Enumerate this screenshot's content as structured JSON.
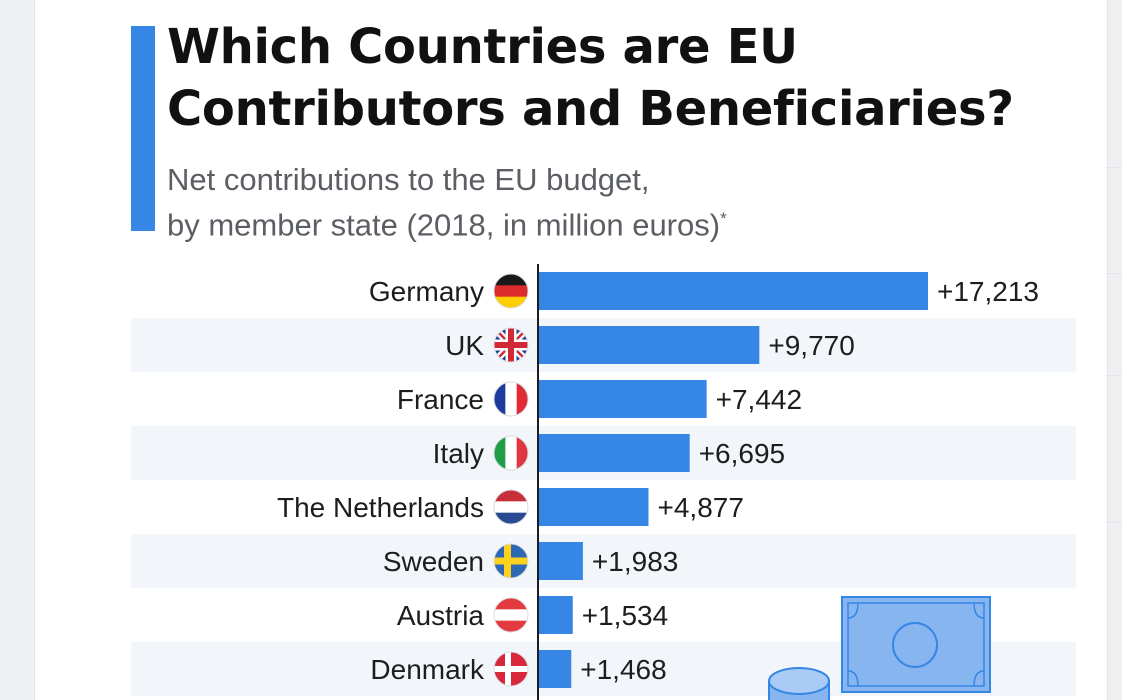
{
  "header": {
    "title_line1": "Which Countries are EU",
    "title_line2": "Contributors and Beneficiaries?",
    "subtitle_line1": "Net contributions to the EU budget,",
    "subtitle_line2": "by member state (2018, in million euros)",
    "subtitle_footnote_mark": "*"
  },
  "colors": {
    "accent": "#3686e6",
    "bar": "#3686e6",
    "row_stripe": "#f2f6fb",
    "text": "#111111",
    "subtitle": "#5b5f64"
  },
  "chart_data": {
    "type": "bar",
    "orientation": "horizontal",
    "categories": [
      "Germany",
      "UK",
      "France",
      "Italy",
      "The Netherlands",
      "Sweden",
      "Austria",
      "Denmark"
    ],
    "values": [
      17213,
      9770,
      7442,
      6695,
      4877,
      1983,
      1534,
      1468
    ],
    "data_labels": [
      "+17,213",
      "+9,770",
      "+7,442",
      "+6,695",
      "+4,877",
      "+1,983",
      "+1,534",
      "+1,468"
    ],
    "flags": [
      "flag-germany-icon",
      "flag-uk-icon",
      "flag-france-icon",
      "flag-italy-icon",
      "flag-netherlands-icon",
      "flag-sweden-icon",
      "flag-austria-icon",
      "flag-denmark-icon"
    ],
    "xlim": [
      0,
      17213
    ],
    "grid": false,
    "legend": "none"
  },
  "decoration": {
    "icons": [
      "banknote-icon",
      "coin-stack-icon"
    ]
  }
}
